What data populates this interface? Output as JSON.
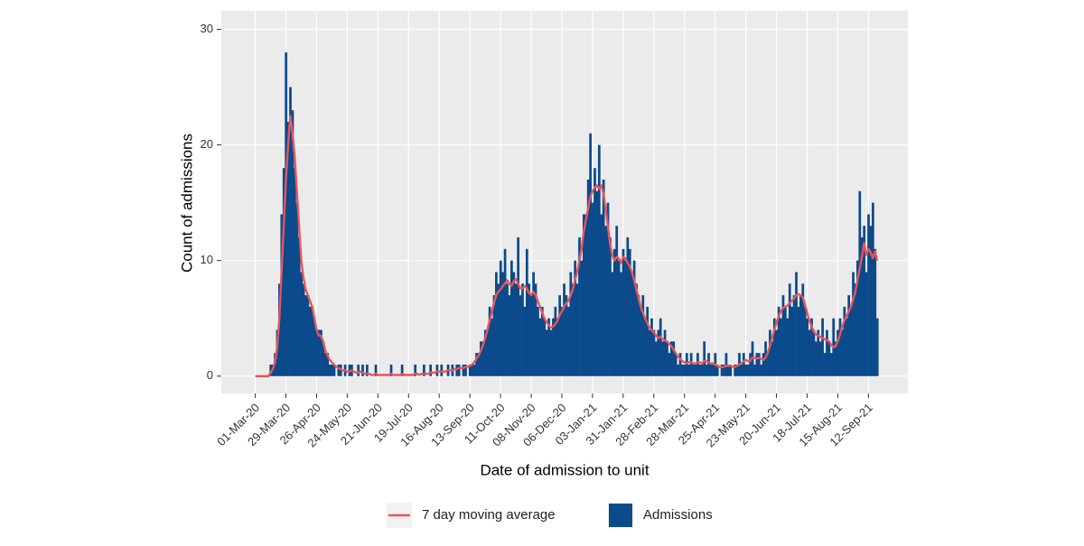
{
  "chart_data": {
    "type": "bar",
    "x_label": "Date of admission to unit",
    "y_label": "Count of admissions",
    "xlim": [
      -31,
      596
    ],
    "xticks": [
      {
        "value": 0,
        "label": "01-Mar-20"
      },
      {
        "value": 28,
        "label": "29-Mar-20"
      },
      {
        "value": 56,
        "label": "26-Apr-20"
      },
      {
        "value": 84,
        "label": "24-May-20"
      },
      {
        "value": 112,
        "label": "21-Jun-20"
      },
      {
        "value": 140,
        "label": "19-Jul-20"
      },
      {
        "value": 168,
        "label": "16-Aug-20"
      },
      {
        "value": 196,
        "label": "13-Sep-20"
      },
      {
        "value": 224,
        "label": "11-Oct-20"
      },
      {
        "value": 252,
        "label": "08-Nov-20"
      },
      {
        "value": 280,
        "label": "06-Dec-20"
      },
      {
        "value": 308,
        "label": "03-Jan-21"
      },
      {
        "value": 336,
        "label": "31-Jan-21"
      },
      {
        "value": 364,
        "label": "28-Feb-21"
      },
      {
        "value": 392,
        "label": "28-Mar-21"
      },
      {
        "value": 420,
        "label": "25-Apr-21"
      },
      {
        "value": 448,
        "label": "23-May-21"
      },
      {
        "value": 476,
        "label": "20-Jun-21"
      },
      {
        "value": 504,
        "label": "18-Jul-21"
      },
      {
        "value": 532,
        "label": "15-Aug-21"
      },
      {
        "value": 560,
        "label": "12-Sep-21"
      }
    ],
    "ylim": [
      -1.5,
      31.6
    ],
    "yticks": [
      0,
      10,
      20,
      30
    ],
    "grid": true,
    "legend": "bottom",
    "x": [
      0,
      2,
      4,
      6,
      8,
      10,
      12,
      14,
      16,
      18,
      20,
      22,
      24,
      26,
      28,
      30,
      32,
      34,
      36,
      38,
      40,
      42,
      44,
      46,
      48,
      50,
      52,
      54,
      56,
      58,
      60,
      62,
      64,
      66,
      68,
      70,
      72,
      74,
      76,
      78,
      80,
      82,
      84,
      86,
      88,
      90,
      92,
      94,
      96,
      98,
      100,
      102,
      104,
      106,
      108,
      110,
      112,
      114,
      116,
      118,
      120,
      122,
      124,
      126,
      128,
      130,
      132,
      134,
      136,
      138,
      140,
      142,
      144,
      146,
      148,
      150,
      152,
      154,
      156,
      158,
      160,
      162,
      164,
      166,
      168,
      170,
      172,
      174,
      176,
      178,
      180,
      182,
      184,
      186,
      188,
      190,
      192,
      194,
      196,
      198,
      200,
      202,
      204,
      206,
      208,
      210,
      212,
      214,
      216,
      218,
      220,
      222,
      224,
      226,
      228,
      230,
      232,
      234,
      236,
      238,
      240,
      242,
      244,
      246,
      248,
      250,
      252,
      254,
      256,
      258,
      260,
      262,
      264,
      266,
      268,
      270,
      272,
      274,
      276,
      278,
      280,
      282,
      284,
      286,
      288,
      290,
      292,
      294,
      296,
      298,
      300,
      302,
      304,
      306,
      308,
      310,
      312,
      314,
      316,
      318,
      320,
      322,
      324,
      326,
      328,
      330,
      332,
      334,
      336,
      338,
      340,
      342,
      344,
      346,
      348,
      350,
      352,
      354,
      356,
      358,
      360,
      362,
      364,
      366,
      368,
      370,
      372,
      374,
      376,
      378,
      380,
      382,
      384,
      386,
      388,
      390,
      392,
      394,
      396,
      398,
      400,
      402,
      404,
      406,
      408,
      410,
      412,
      414,
      416,
      418,
      420,
      422,
      424,
      426,
      428,
      430,
      432,
      434,
      436,
      438,
      440,
      442,
      444,
      446,
      448,
      450,
      452,
      454,
      456,
      458,
      460,
      462,
      464,
      466,
      468,
      470,
      472,
      474,
      476,
      478,
      480,
      482,
      484,
      486,
      488,
      490,
      492,
      494,
      496,
      498,
      500,
      502,
      504,
      506,
      508,
      510,
      512,
      514,
      516,
      518,
      520,
      522,
      524,
      526,
      528,
      530,
      532,
      534,
      536,
      538,
      540,
      542,
      544,
      546,
      548,
      550,
      552,
      554,
      556,
      558,
      560,
      562,
      564,
      566,
      568
    ],
    "series": [
      {
        "name": "Admissions",
        "type": "bar",
        "color": "#0b4a8b",
        "values": [
          0,
          0,
          0,
          0,
          0,
          0,
          0,
          1,
          1,
          2,
          4,
          8,
          14,
          18,
          28,
          22,
          25,
          23,
          18,
          15,
          12,
          9,
          8,
          7,
          7,
          6,
          6,
          5,
          4,
          4,
          4,
          3,
          2,
          2,
          1,
          1,
          1,
          0,
          1,
          1,
          0,
          1,
          0,
          1,
          1,
          0,
          0,
          1,
          0,
          1,
          0,
          1,
          0,
          0,
          0,
          1,
          0,
          0,
          0,
          0,
          0,
          0,
          1,
          0,
          0,
          0,
          0,
          1,
          0,
          0,
          0,
          0,
          0,
          1,
          0,
          0,
          0,
          1,
          0,
          0,
          1,
          0,
          0,
          1,
          0,
          1,
          0,
          0,
          1,
          0,
          1,
          0,
          1,
          1,
          0,
          1,
          1,
          0,
          1,
          1,
          1,
          2,
          2,
          3,
          3,
          4,
          4,
          6,
          5,
          7,
          9,
          8,
          10,
          9,
          11,
          8,
          7,
          10,
          9,
          8,
          12,
          7,
          8,
          6,
          11,
          8,
          7,
          9,
          8,
          6,
          5,
          6,
          5,
          4,
          5,
          4,
          5,
          6,
          5,
          7,
          6,
          8,
          7,
          6,
          9,
          8,
          10,
          8,
          12,
          10,
          14,
          14,
          17,
          21,
          15,
          18,
          16,
          20,
          14,
          17,
          13,
          15,
          12,
          9,
          11,
          13,
          10,
          9,
          11,
          10,
          12,
          11,
          9,
          10,
          8,
          7,
          6,
          7,
          5,
          6,
          4,
          5,
          4,
          3,
          4,
          5,
          3,
          4,
          3,
          2,
          3,
          3,
          2,
          1,
          2,
          1,
          1,
          2,
          1,
          2,
          1,
          1,
          2,
          1,
          1,
          3,
          1,
          2,
          1,
          1,
          2,
          1,
          0,
          1,
          1,
          2,
          1,
          1,
          0,
          1,
          1,
          2,
          1,
          2,
          1,
          1,
          2,
          3,
          1,
          2,
          2,
          1,
          2,
          3,
          2,
          4,
          3,
          5,
          4,
          6,
          5,
          7,
          6,
          5,
          8,
          6,
          7,
          9,
          6,
          7,
          8,
          6,
          5,
          4,
          5,
          4,
          3,
          4,
          3,
          5,
          2,
          4,
          3,
          2,
          5,
          3,
          4,
          5,
          4,
          6,
          5,
          7,
          6,
          9,
          8,
          10,
          16,
          12,
          13,
          9,
          14,
          13,
          15,
          11,
          5
        ]
      },
      {
        "name": "7 day moving average",
        "type": "line",
        "color": "#e8555a",
        "values": [
          0,
          0,
          0,
          0,
          0,
          0,
          0,
          0.3,
          0.6,
          1.2,
          2.5,
          5,
          9,
          13,
          17,
          20,
          22.5,
          21,
          19,
          16,
          13,
          10,
          8.5,
          7.5,
          7,
          6.5,
          6,
          5,
          4,
          3.5,
          3.5,
          3,
          2.2,
          1.8,
          1.4,
          1.2,
          1,
          0.8,
          0.7,
          0.6,
          0.5,
          0.5,
          0.4,
          0.4,
          0.5,
          0.4,
          0.3,
          0.3,
          0.4,
          0.3,
          0.2,
          0.2,
          0.2,
          0.1,
          0.1,
          0.2,
          0.1,
          0.1,
          0.1,
          0.1,
          0.1,
          0.1,
          0.2,
          0.1,
          0.1,
          0.1,
          0.1,
          0.2,
          0.1,
          0.1,
          0.1,
          0.1,
          0.1,
          0.2,
          0.2,
          0.1,
          0.2,
          0.2,
          0.2,
          0.2,
          0.3,
          0.3,
          0.3,
          0.4,
          0.4,
          0.4,
          0.4,
          0.4,
          0.5,
          0.5,
          0.5,
          0.6,
          0.6,
          0.7,
          0.7,
          0.7,
          0.8,
          0.8,
          0.9,
          1.0,
          1.2,
          1.5,
          1.8,
          2.2,
          2.7,
          3.3,
          4,
          4.8,
          5.5,
          6.3,
          7,
          7.3,
          7.5,
          7.8,
          8,
          8.3,
          8,
          7.8,
          8.2,
          8.4,
          8,
          7.6,
          7.6,
          7.8,
          7.6,
          7.2,
          7,
          7.3,
          7,
          6.5,
          6,
          5.5,
          5,
          4.7,
          4.4,
          4.2,
          4.3,
          4.5,
          4.8,
          5.3,
          5.6,
          6,
          6.3,
          6.5,
          7,
          7.5,
          8.3,
          9,
          10,
          11,
          12.5,
          13.5,
          14.5,
          15.5,
          16,
          16.3,
          16.5,
          16.2,
          16.5,
          15.8,
          14.5,
          13,
          11.5,
          10.5,
          10,
          10.3,
          10.2,
          9.8,
          10.3,
          10.2,
          9.8,
          9.5,
          9,
          8.3,
          7.5,
          6.8,
          6,
          5.5,
          5,
          4.6,
          4.2,
          4,
          3.8,
          3.5,
          3.3,
          3.4,
          3.2,
          3.1,
          3,
          2.8,
          2.6,
          2.3,
          2,
          1.7,
          1.5,
          1.3,
          1.2,
          1.1,
          1.2,
          1.2,
          1.1,
          1.1,
          1.2,
          1.2,
          1.1,
          1.3,
          1.3,
          1.2,
          1.1,
          1.1,
          1.0,
          0.9,
          0.8,
          0.8,
          0.8,
          0.9,
          0.9,
          0.9,
          0.8,
          0.8,
          0.9,
          1.0,
          1.1,
          1.3,
          1.4,
          1.3,
          1.3,
          1.6,
          1.6,
          1.5,
          1.6,
          1.5,
          1.4,
          1.6,
          2,
          2.6,
          3.3,
          4,
          4.6,
          5.2,
          5.6,
          5.9,
          6,
          6.1,
          6.3,
          6.5,
          6.7,
          7,
          7.1,
          7,
          6.8,
          6.2,
          5.5,
          4.8,
          4.3,
          3.9,
          3.6,
          3.5,
          3.4,
          3.3,
          3.2,
          3.1,
          3,
          2.7,
          2.5,
          2.6,
          3,
          3.6,
          4.3,
          4.8,
          5.2,
          5.6,
          6,
          6.6,
          7.3,
          8.3,
          9.3,
          10.3,
          11.5,
          10.5,
          11,
          10.7,
          10.2,
          10.8,
          10
        ]
      }
    ]
  }
}
